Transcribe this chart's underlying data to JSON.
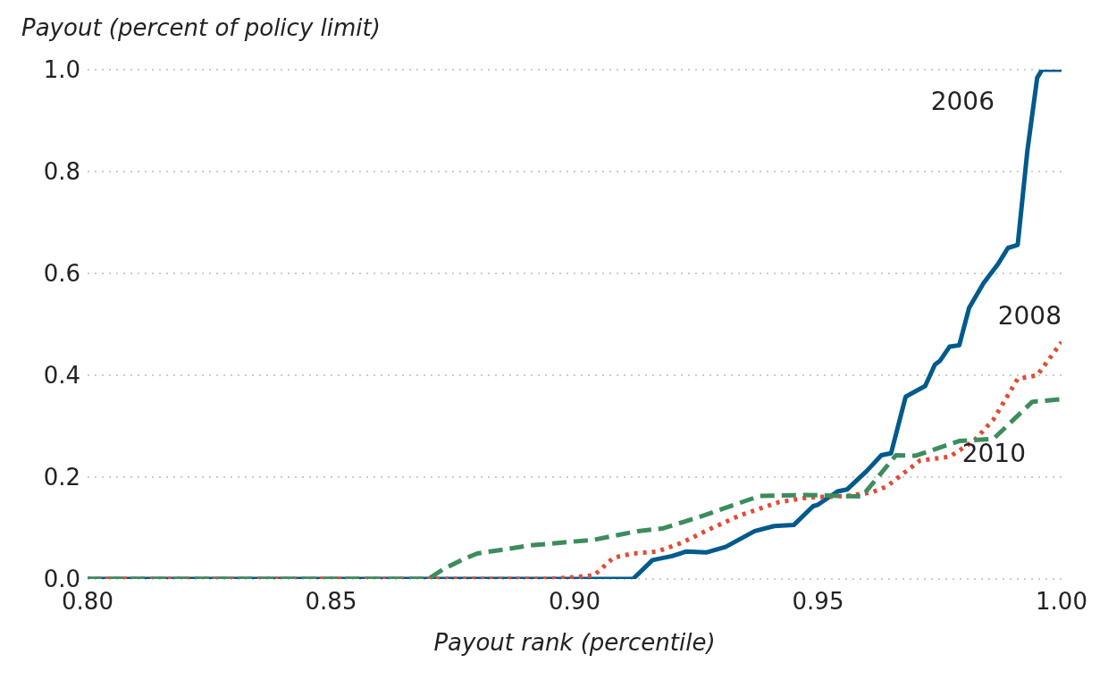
{
  "chart_data": {
    "type": "line",
    "ylabel": "Payout (percent of policy limit)",
    "xlabel": "Payout rank (percentile)",
    "xlim": [
      0.8,
      1.0
    ],
    "xticks": [
      {
        "value": 0.8,
        "label": "0.80"
      },
      {
        "value": 0.85,
        "label": "0.85"
      },
      {
        "value": 0.9,
        "label": "0.90"
      },
      {
        "value": 0.95,
        "label": "0.95"
      },
      {
        "value": 1.0,
        "label": "1.00"
      }
    ],
    "ylim": [
      0,
      1.0
    ],
    "yticks": [
      {
        "value": 0,
        "label": "0.0"
      },
      0.2,
      0.4,
      0.6,
      0.8,
      {
        "value": 1.0,
        "label": "1.0"
      }
    ],
    "grid": "y",
    "legend": false,
    "marker": "none",
    "series": [
      {
        "name": "2006",
        "color": "#005a8c",
        "line_style": "solid",
        "x": [
          0.8,
          0.912,
          0.916,
          0.92,
          0.923,
          0.927,
          0.931,
          0.937,
          0.941,
          0.945,
          0.949,
          0.95,
          0.954,
          0.956,
          0.96,
          0.963,
          0.965,
          0.968,
          0.972,
          0.974,
          0.975,
          0.977,
          0.979,
          0.981,
          0.984,
          0.987,
          0.989,
          0.991,
          0.993,
          0.995,
          0.996,
          1.0
        ],
        "values": [
          0,
          0,
          0.037,
          0.045,
          0.054,
          0.052,
          0.063,
          0.094,
          0.104,
          0.106,
          0.143,
          0.146,
          0.172,
          0.176,
          0.212,
          0.243,
          0.247,
          0.358,
          0.379,
          0.421,
          0.428,
          0.456,
          0.459,
          0.532,
          0.581,
          0.619,
          0.65,
          0.656,
          0.842,
          0.984,
          1.0,
          1.0
        ]
      },
      {
        "name": "2008",
        "color": "#e34a33",
        "line_style": "dotted",
        "x": [
          0.8,
          0.895,
          0.904,
          0.908,
          0.912,
          0.917,
          0.922,
          0.928,
          0.934,
          0.942,
          0.948,
          0.956,
          0.961,
          0.964,
          0.971,
          0.977,
          0.982,
          0.986,
          0.991,
          0.995,
          1.0
        ],
        "values": [
          0,
          0,
          0.007,
          0.042,
          0.05,
          0.054,
          0.071,
          0.099,
          0.125,
          0.151,
          0.16,
          0.163,
          0.17,
          0.181,
          0.233,
          0.24,
          0.271,
          0.313,
          0.393,
          0.4,
          0.465
        ]
      },
      {
        "name": "2010",
        "color": "#3d8c5c",
        "line_style": "dashed",
        "x": [
          0.8,
          0.87,
          0.873,
          0.877,
          0.88,
          0.891,
          0.904,
          0.913,
          0.918,
          0.926,
          0.938,
          0.947,
          0.959,
          0.966,
          0.97,
          0.979,
          0.986,
          0.994,
          1.0
        ],
        "values": [
          0,
          0,
          0.019,
          0.038,
          0.05,
          0.066,
          0.077,
          0.094,
          0.099,
          0.123,
          0.163,
          0.165,
          0.162,
          0.243,
          0.242,
          0.271,
          0.275,
          0.348,
          0.353
        ]
      }
    ]
  }
}
